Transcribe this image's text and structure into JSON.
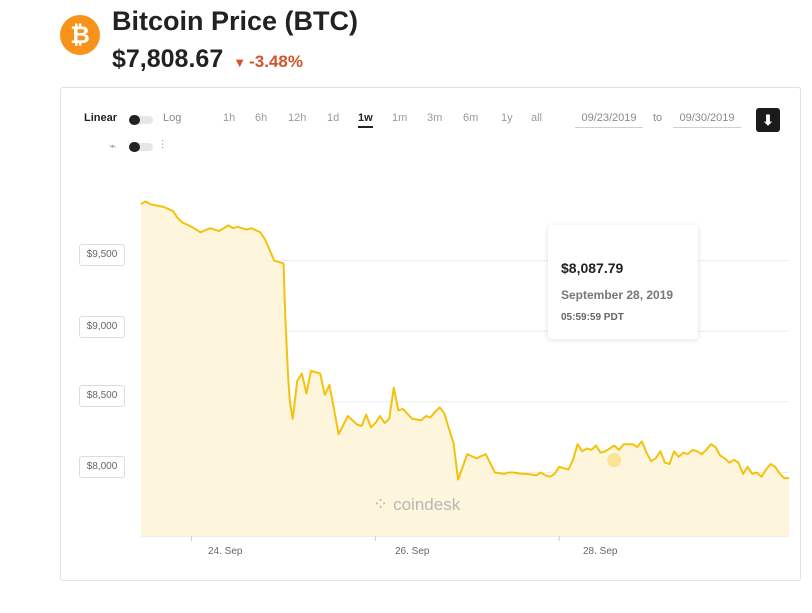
{
  "header": {
    "logo_glyph": "₿",
    "title": "Bitcoin Price (BTC)",
    "price": "$7,808.67",
    "change_arrow": "▼",
    "change": "-3.48%",
    "colors": {
      "logo": "#f7931a",
      "change_negative": "#d2542e"
    }
  },
  "controls": {
    "scale_linear": "Linear",
    "scale_log": "Log",
    "ranges": [
      "1h",
      "6h",
      "12h",
      "1d",
      "1w",
      "1m",
      "3m",
      "6m",
      "1y",
      "all"
    ],
    "active_range": "1w",
    "date_from": "09/23/2019",
    "date_to_label": "to",
    "date_to": "09/30/2019",
    "line_icon": "line-chart-icon",
    "candle_icon": "candlestick-icon",
    "download_icon": "download-icon"
  },
  "tooltip": {
    "price": "$8,087.79",
    "date": "September 28, 2019",
    "time": "05:59:59 PDT"
  },
  "watermark": "coindesk",
  "chart_data": {
    "type": "area",
    "title": "",
    "xlabel": "",
    "ylabel": "",
    "y_tick_labels": [
      "$9,500",
      "$9,000",
      "$8,500",
      "$8,000"
    ],
    "y_ticks": [
      9500,
      9000,
      8500,
      8000
    ],
    "x_tick_labels": [
      "24. Sep",
      "26. Sep",
      "28. Sep"
    ],
    "x_ticks": [
      24,
      26,
      28
    ],
    "xlim": [
      23.45,
      30.5
    ],
    "ylim": [
      7550,
      10050
    ],
    "grid": "horizontal",
    "line_color": "#f4c20d",
    "fill_color": "#fdf3d6",
    "series": [
      {
        "x": [
          23.45,
          23.5,
          23.55,
          23.7,
          23.8,
          23.85,
          23.9,
          24.0,
          24.1,
          24.2,
          24.25,
          24.3,
          24.4,
          24.45,
          24.5,
          24.6,
          24.65,
          24.75,
          24.8,
          24.9,
          24.95,
          25.0,
          25.02,
          25.05,
          25.07,
          25.1,
          25.15,
          25.2,
          25.25,
          25.3,
          25.4,
          25.45,
          25.5,
          25.55,
          25.6,
          25.7,
          25.8,
          25.85,
          25.9,
          25.95,
          26.0,
          26.05,
          26.1,
          26.15,
          26.2,
          26.25,
          26.3,
          26.4,
          26.5,
          26.55,
          26.6,
          26.65,
          26.7,
          26.75,
          26.8,
          26.85,
          26.9,
          27.0,
          27.1,
          27.2,
          27.3,
          27.4,
          27.45,
          27.5,
          27.55,
          27.6,
          27.65,
          27.7,
          27.75,
          27.8,
          27.85,
          27.9,
          27.95,
          28.0,
          28.1,
          28.15,
          28.2,
          28.25,
          28.3,
          28.35,
          28.4,
          28.45,
          28.5,
          28.55,
          28.6,
          28.65,
          28.7,
          28.8,
          28.85,
          28.9,
          28.95,
          29.0,
          29.05,
          29.1,
          29.15,
          29.2,
          29.25,
          29.3,
          29.35,
          29.4,
          29.45,
          29.5,
          29.55,
          29.6,
          29.65,
          29.7,
          29.75,
          29.8,
          29.85,
          29.9,
          29.95,
          30.0,
          30.05,
          30.1,
          30.15,
          30.2,
          30.25,
          30.3,
          30.35,
          30.4,
          30.45,
          30.5
        ],
        "y": [
          9900,
          9920,
          9900,
          9880,
          9850,
          9800,
          9770,
          9740,
          9700,
          9730,
          9720,
          9710,
          9750,
          9730,
          9740,
          9720,
          9730,
          9700,
          9650,
          9500,
          9490,
          9480,
          9100,
          8680,
          8500,
          8380,
          8650,
          8700,
          8560,
          8720,
          8700,
          8550,
          8620,
          8450,
          8270,
          8400,
          8340,
          8330,
          8410,
          8320,
          8350,
          8400,
          8350,
          8380,
          8600,
          8440,
          8450,
          8380,
          8370,
          8400,
          8390,
          8430,
          8460,
          8420,
          8310,
          8210,
          7950,
          8130,
          8100,
          8130,
          8000,
          7990,
          8000,
          8000,
          7995,
          7990,
          7990,
          7985,
          7980,
          8000,
          7980,
          7970,
          7990,
          8040,
          8020,
          8090,
          8200,
          8150,
          8170,
          8160,
          8190,
          8140,
          8150,
          8170,
          8190,
          8160,
          8200,
          8200,
          8180,
          8220,
          8140,
          8080,
          8100,
          8150,
          8070,
          8060,
          8150,
          8110,
          8140,
          8130,
          8160,
          8150,
          8130,
          8160,
          8200,
          8180,
          8120,
          8100,
          8070,
          8090,
          8070,
          7990,
          8040,
          7990,
          8000,
          7970,
          8020,
          8060,
          8040,
          7990,
          7960,
          7960
        ]
      }
    ]
  }
}
